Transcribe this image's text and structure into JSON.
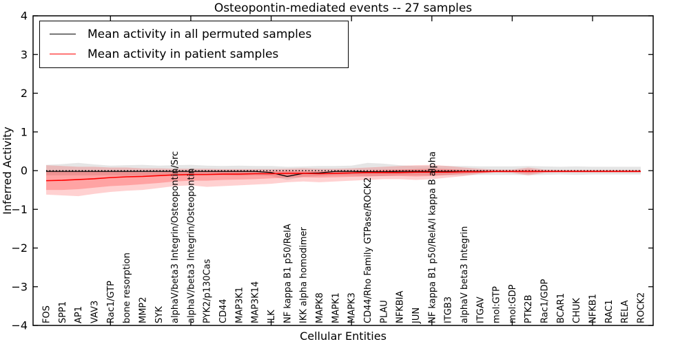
{
  "title": "Osteopontin-mediated events -- 27 samples",
  "legend": {
    "items": [
      {
        "name": "permuted",
        "label": "Mean activity in all permuted samples",
        "color": "#000000"
      },
      {
        "name": "patient",
        "label": "Mean activity in patient samples",
        "color": "#ff0000"
      }
    ]
  },
  "chart_data": {
    "type": "line",
    "title": "Osteopontin-mediated events -- 27 samples",
    "xlabel": "Cellular Entities",
    "ylabel": "Inferred Activity",
    "ylim": [
      -4,
      4
    ],
    "yticks": [
      4,
      3,
      2,
      1,
      0,
      -1,
      -2,
      -3,
      -4
    ],
    "x_major_ticks_at": [
      4,
      9,
      14,
      19,
      24,
      29,
      34
    ],
    "grid": false,
    "legend_position": "upper left",
    "zero_reference_line": {
      "y": 0,
      "style": "dotted",
      "color": "#000000"
    },
    "x_tick_label_rotation": 90,
    "categories": [
      "FOS",
      "SPP1",
      "AP1",
      "VAV3",
      "Rac1/GTP",
      "bone resorption",
      "MMP2",
      "SYK",
      "alphaV/beta3 Integrin/Osteopontin/Src",
      "alphaV/beta3 Integrin/Osteopontin",
      "PYK2/p130Cas",
      "CD44",
      "MAP3K1",
      "MAP3K14",
      "ILK",
      "NF kappa B1 p50/RelA",
      "IKK alpha homodimer",
      "MAPK8",
      "MAPK1",
      "MAPK3",
      "CD44/Rho Family GTPase/ROCK2",
      "PLAU",
      "NFKBIA",
      "JUN",
      "NF kappa B1 p50/RelA/I kappa B alpha",
      "ITGB3",
      "alphaV beta3 Integrin",
      "ITGAV",
      "mol:GTP",
      "mol:GDP",
      "PTK2B",
      "Rac1/GDP",
      "BCAR1",
      "CHUK",
      "NFKB1",
      "RAC1",
      "RELA",
      "ROCK2"
    ],
    "series": [
      {
        "name": "Mean activity in all permuted samples",
        "color": "#000000",
        "values": [
          -0.02,
          -0.02,
          -0.02,
          -0.02,
          -0.02,
          -0.02,
          -0.02,
          -0.02,
          -0.02,
          -0.02,
          -0.02,
          -0.02,
          -0.02,
          -0.02,
          -0.05,
          -0.15,
          -0.07,
          -0.06,
          -0.02,
          -0.02,
          -0.03,
          -0.03,
          -0.02,
          -0.02,
          -0.02,
          -0.02,
          -0.02,
          -0.02,
          -0.02,
          -0.02,
          -0.02,
          -0.02,
          -0.02,
          -0.02,
          -0.02,
          -0.02,
          -0.02,
          -0.02
        ]
      },
      {
        "name": "Mean activity in patient samples",
        "color": "#ff0000",
        "values": [
          -0.26,
          -0.25,
          -0.23,
          -0.21,
          -0.18,
          -0.16,
          -0.15,
          -0.13,
          -0.11,
          -0.1,
          -0.1,
          -0.09,
          -0.09,
          -0.08,
          -0.08,
          -0.07,
          -0.07,
          -0.08,
          -0.07,
          -0.06,
          -0.05,
          -0.05,
          -0.05,
          -0.04,
          -0.04,
          -0.04,
          -0.03,
          -0.03,
          -0.02,
          -0.02,
          -0.02,
          -0.02,
          -0.02,
          -0.02,
          -0.02,
          -0.02,
          -0.02,
          -0.02
        ]
      }
    ],
    "bands": [
      {
        "name": "permuted-samples-range",
        "color": "#000000",
        "opacity": 0.1,
        "hi": [
          0.15,
          0.17,
          0.2,
          0.16,
          0.13,
          0.14,
          0.15,
          0.13,
          0.14,
          0.15,
          0.13,
          0.12,
          0.13,
          0.12,
          0.12,
          0.1,
          0.11,
          0.12,
          0.12,
          0.13,
          0.2,
          0.18,
          0.14,
          0.12,
          0.12,
          0.12,
          0.12,
          0.11,
          0.11,
          0.11,
          0.12,
          0.11,
          0.1,
          0.11,
          0.1,
          0.1,
          0.1,
          0.1
        ],
        "lo": [
          -0.12,
          -0.12,
          -0.12,
          -0.12,
          -0.12,
          -0.13,
          -0.12,
          -0.12,
          -0.14,
          -0.13,
          -0.12,
          -0.12,
          -0.13,
          -0.12,
          -0.14,
          -0.24,
          -0.16,
          -0.14,
          -0.12,
          -0.12,
          -0.14,
          -0.14,
          -0.12,
          -0.12,
          -0.12,
          -0.12,
          -0.12,
          -0.11,
          -0.11,
          -0.11,
          -0.12,
          -0.11,
          -0.1,
          -0.11,
          -0.1,
          -0.1,
          -0.1,
          -0.1
        ]
      },
      {
        "name": "patient-samples-outer-range",
        "color": "#ff0000",
        "opacity": 0.18,
        "hi": [
          0.14,
          0.12,
          0.1,
          0.1,
          0.08,
          0.08,
          0.06,
          0.06,
          0.05,
          0.05,
          0.05,
          0.04,
          0.04,
          0.04,
          0.04,
          0.05,
          0.06,
          0.05,
          0.05,
          0.06,
          0.08,
          0.1,
          0.12,
          0.14,
          0.15,
          0.12,
          0.08,
          0.05,
          0.03,
          0.03,
          0.08,
          0.03,
          0.02,
          0.02,
          0.02,
          0.02,
          0.02,
          0.02
        ],
        "lo": [
          -0.62,
          -0.64,
          -0.66,
          -0.6,
          -0.55,
          -0.52,
          -0.5,
          -0.45,
          -0.4,
          -0.38,
          -0.42,
          -0.4,
          -0.38,
          -0.36,
          -0.34,
          -0.3,
          -0.28,
          -0.3,
          -0.28,
          -0.26,
          -0.24,
          -0.22,
          -0.22,
          -0.24,
          -0.22,
          -0.18,
          -0.14,
          -0.08,
          -0.05,
          -0.06,
          -0.12,
          -0.06,
          -0.05,
          -0.05,
          -0.05,
          -0.05,
          -0.05,
          -0.05
        ]
      },
      {
        "name": "patient-samples-inner-range",
        "color": "#ff0000",
        "opacity": 0.22,
        "hi": [
          0.0,
          -0.01,
          -0.02,
          -0.02,
          -0.03,
          -0.03,
          -0.04,
          -0.04,
          -0.03,
          -0.03,
          -0.02,
          -0.02,
          -0.02,
          -0.02,
          -0.02,
          -0.01,
          -0.01,
          -0.02,
          -0.02,
          -0.01,
          0.0,
          0.02,
          0.03,
          0.04,
          0.05,
          0.04,
          0.02,
          0.01,
          0.0,
          0.0,
          0.03,
          0.0,
          0.0,
          0.0,
          0.0,
          0.0,
          0.0,
          0.0
        ],
        "lo": [
          -0.5,
          -0.5,
          -0.48,
          -0.44,
          -0.4,
          -0.38,
          -0.35,
          -0.32,
          -0.28,
          -0.26,
          -0.26,
          -0.24,
          -0.23,
          -0.22,
          -0.2,
          -0.18,
          -0.17,
          -0.18,
          -0.17,
          -0.16,
          -0.15,
          -0.14,
          -0.14,
          -0.15,
          -0.14,
          -0.11,
          -0.08,
          -0.05,
          -0.04,
          -0.04,
          -0.07,
          -0.04,
          -0.03,
          -0.03,
          -0.03,
          -0.03,
          -0.03,
          -0.03
        ]
      }
    ]
  }
}
